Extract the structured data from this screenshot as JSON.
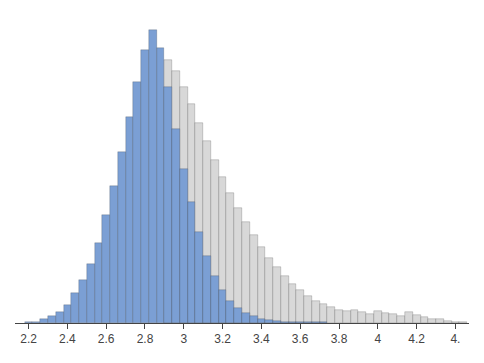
{
  "chart_data": {
    "type": "histogram",
    "series": [
      {
        "color": "#d8d8d8",
        "bins": [
          2.9,
          2.94,
          2.98,
          3.02,
          3.06,
          3.1,
          3.14,
          3.18,
          3.22,
          3.26,
          3.3,
          3.34,
          3.38,
          3.42,
          3.46,
          3.5,
          3.54,
          3.58,
          3.62,
          3.66,
          3.7,
          3.74,
          3.78,
          3.82,
          3.86,
          3.9,
          3.94,
          3.98,
          4.02,
          4.06,
          4.1,
          4.14,
          4.18,
          4.22,
          4.26,
          4.3,
          4.34,
          4.38,
          4.42,
          4.46
        ],
        "values": [
          355,
          340,
          318,
          295,
          270,
          245,
          220,
          197,
          175,
          155,
          136,
          118,
          102,
          88,
          75,
          63,
          53,
          44,
          36,
          30,
          26,
          22,
          18,
          16,
          18,
          15,
          12,
          16,
          14,
          12,
          9,
          15,
          11,
          8,
          6,
          5,
          3,
          2,
          1
        ]
      },
      {
        "color": "#7b9fd4",
        "bins": [
          2.18,
          2.22,
          2.26,
          2.3,
          2.34,
          2.38,
          2.42,
          2.46,
          2.5,
          2.54,
          2.58,
          2.62,
          2.66,
          2.7,
          2.74,
          2.78,
          2.82,
          2.86,
          2.9,
          2.94,
          2.98,
          3.02,
          3.06,
          3.1,
          3.14,
          3.18,
          3.22,
          3.26,
          3.3,
          3.34,
          3.38,
          3.42,
          3.46,
          3.5,
          3.54,
          3.58,
          3.62,
          3.66,
          3.7,
          3.74
        ],
        "values": [
          1,
          2,
          5,
          9,
          15,
          24,
          40,
          58,
          80,
          108,
          145,
          185,
          230,
          278,
          325,
          368,
          395,
          370,
          318,
          262,
          208,
          163,
          122,
          90,
          64,
          45,
          30,
          20,
          13,
          9,
          6,
          4,
          3,
          2,
          2,
          2,
          1,
          1,
          1
        ]
      }
    ],
    "xlim": [
      2.13,
      4.47
    ],
    "ylim": [
      0,
      415
    ],
    "xticks": [
      2.2,
      2.4,
      2.6,
      2.8,
      3,
      3.2,
      3.4,
      3.6,
      3.8,
      4,
      4.2,
      {
        "value": 4.4,
        "label": "4."
      }
    ],
    "tick_labels": "x",
    "grid": false
  }
}
